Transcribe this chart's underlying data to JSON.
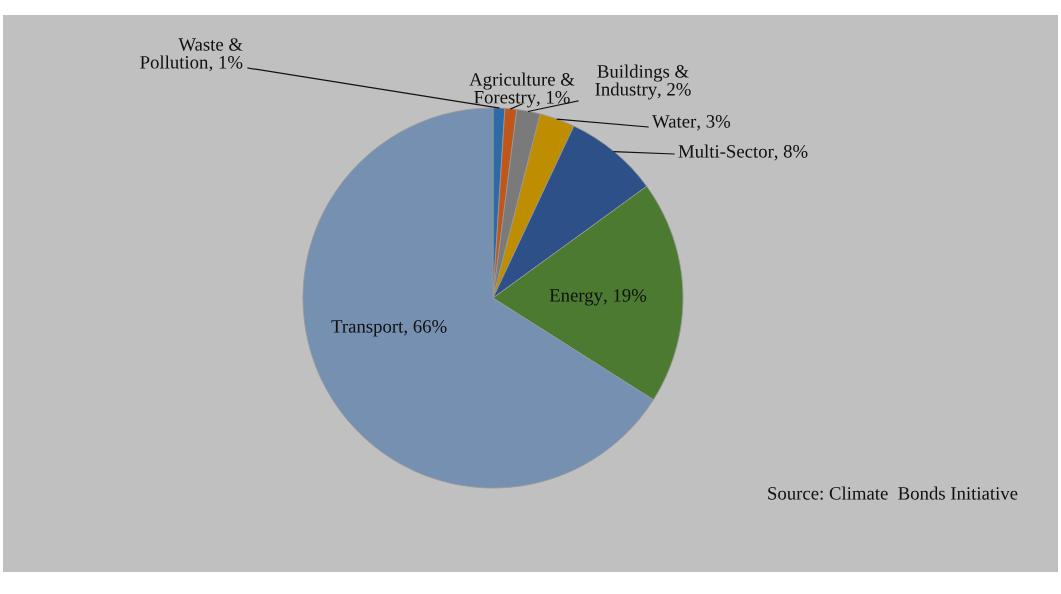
{
  "chart_data": {
    "type": "pie",
    "categories": [
      "Waste & Pollution",
      "Agriculture & Forestry",
      "Buildings & Industry",
      "Water",
      "Multi-Sector",
      "Energy",
      "Transport"
    ],
    "values": [
      1,
      1,
      2,
      3,
      8,
      19,
      66
    ],
    "colors": [
      "#2e6aa6",
      "#c0561a",
      "#7a7a7a",
      "#bf8e00",
      "#2d5089",
      "#4c7a30",
      "#7590b0"
    ],
    "value_labels": [
      ", 1%",
      ", 1%",
      ", 2%",
      ", 3%",
      ", 8%",
      ", 19%",
      ", 66%"
    ],
    "annotations": [
      "Source: Climate  Bonds Initiative"
    ]
  }
}
